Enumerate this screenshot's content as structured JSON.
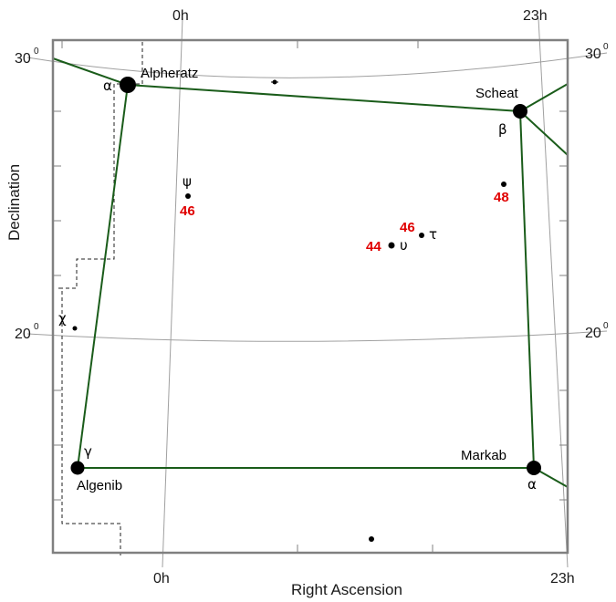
{
  "axes": {
    "x_title": "Right Ascension",
    "y_title": "Declination",
    "top_left_ra": "0h",
    "top_right_ra": "23h",
    "bottom_left_ra": "0h",
    "bottom_right_ra": "23h",
    "left_dec_30": "30",
    "left_dec_20": "20",
    "right_dec_30": "30",
    "right_dec_20": "20",
    "degree_mark": "0"
  },
  "stars": {
    "alpheratz": {
      "name": "Alpheratz",
      "greek": "α"
    },
    "scheat": {
      "name": "Scheat",
      "greek": "β"
    },
    "algenib": {
      "name": "Algenib",
      "greek": "γ"
    },
    "markab": {
      "name": "Markab",
      "greek": "α"
    },
    "psi": {
      "greek": "ψ",
      "flamsteed": "46"
    },
    "upsilon": {
      "greek": "υ",
      "flamsteed": "44"
    },
    "tau": {
      "greek": "τ",
      "flamsteed": "46"
    },
    "star48": {
      "flamsteed": "48"
    },
    "chi": {
      "greek": "χ"
    }
  },
  "colors": {
    "asterism_line": "#1a5c1a",
    "flamsteed_number": "#e00000",
    "frame": "#808080",
    "grid": "#a0a0a0"
  }
}
